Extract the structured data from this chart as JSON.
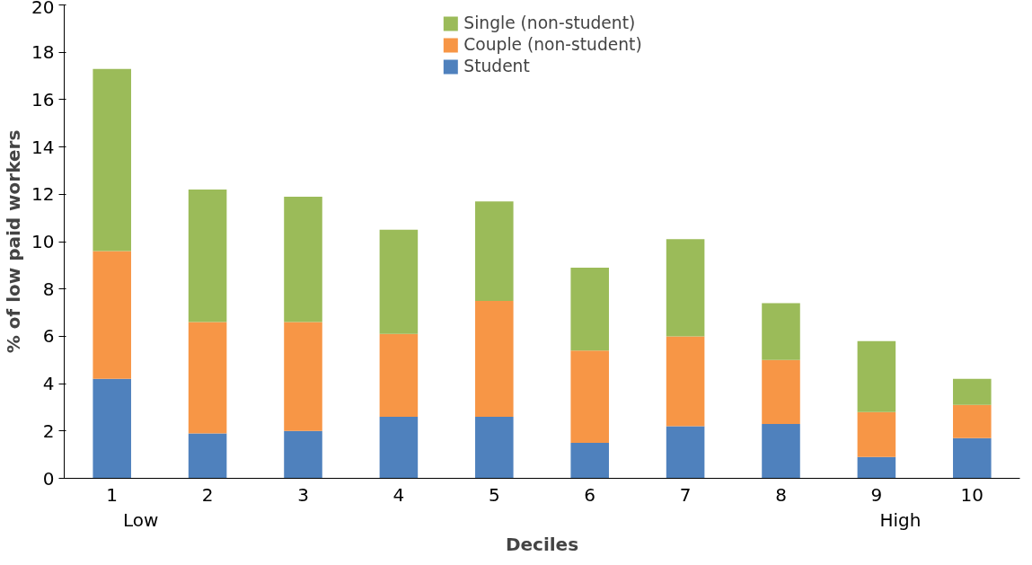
{
  "chart_data": {
    "type": "bar",
    "stacked": true,
    "xlabel": "Deciles",
    "ylabel": "% of low paid workers",
    "categories": [
      "1",
      "2",
      "3",
      "4",
      "5",
      "6",
      "7",
      "8",
      "9",
      "10"
    ],
    "series": [
      {
        "name": "Student",
        "color": "#4f81bd",
        "values": [
          4.2,
          1.9,
          2.0,
          2.6,
          2.6,
          1.5,
          2.2,
          2.3,
          0.9,
          1.7
        ]
      },
      {
        "name": "Couple (non-student)",
        "color": "#f79646",
        "values": [
          5.4,
          4.7,
          4.6,
          3.5,
          4.9,
          3.9,
          3.8,
          2.7,
          1.9,
          1.4
        ]
      },
      {
        "name": "Single (non-student)",
        "color": "#9bbb59",
        "values": [
          7.7,
          5.6,
          5.3,
          4.4,
          4.2,
          3.5,
          4.1,
          2.4,
          3.0,
          1.1
        ]
      }
    ],
    "ylim": [
      0,
      20
    ],
    "yticks": [
      0,
      2,
      4,
      6,
      8,
      10,
      12,
      14,
      16,
      18,
      20
    ],
    "grid": false,
    "legend": "top",
    "annotations": [
      "Low",
      "High"
    ]
  }
}
